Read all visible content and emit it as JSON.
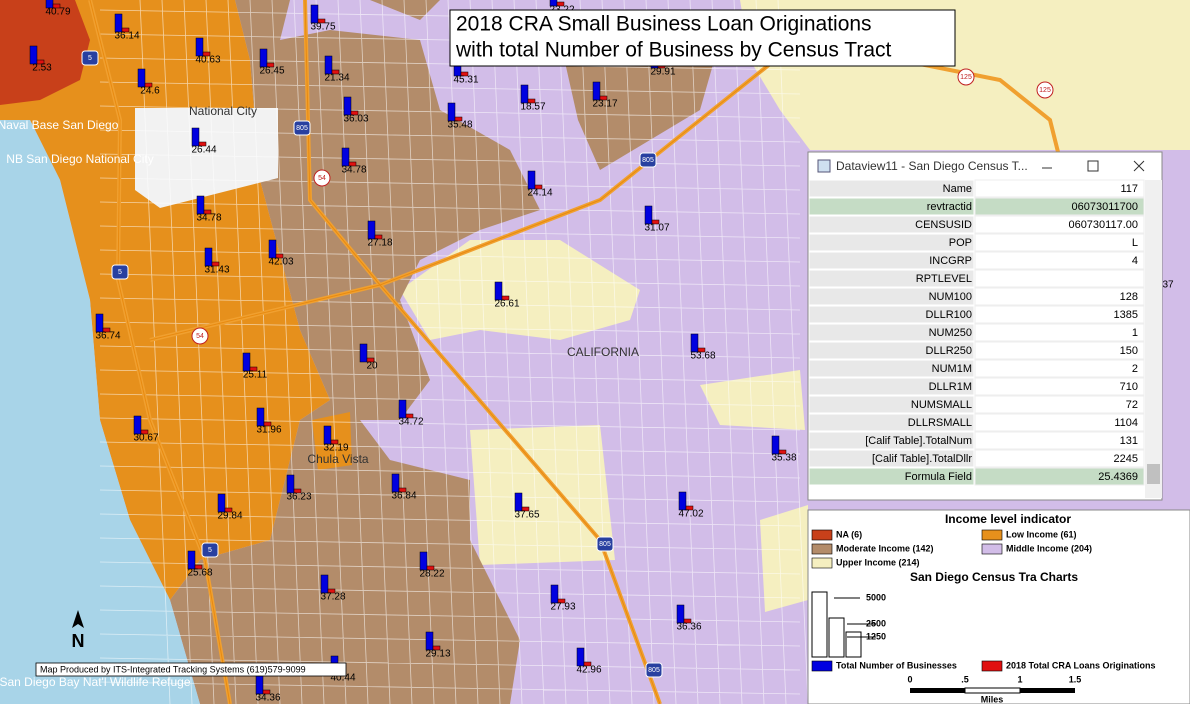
{
  "title": [
    "2018 CRA Small Business Loan Originations",
    "with total Number of Business by Census Tract"
  ],
  "map_labels": [
    "40.79",
    "36.14",
    "2.53",
    "40.63",
    "26.45",
    "21.34",
    "39.75",
    "45.31",
    "29.91",
    "23.22",
    "36.03",
    "35.48",
    "18.57",
    "23.17",
    "24.6",
    "26.44",
    "34.78",
    "24.14",
    "31.07",
    "34.78",
    "27.18",
    "42.03",
    "31.43",
    "26.61",
    "36.74",
    "53.68",
    "20",
    "25.11",
    "31.96",
    "34.72",
    "32.19",
    "30.67",
    "35.38",
    "36.23",
    "36.84",
    "37.65",
    "47.02",
    "29.84",
    "25.68",
    "28.22",
    "37.28",
    "27.93",
    "36.36",
    "29.13",
    "42.96",
    "40.44",
    "34.36",
    "37"
  ],
  "place_labels": [
    "National City",
    "Chula Vista",
    "CALIFORNIA",
    "Naval Base San Diego",
    "NB San Diego National City",
    "San Diego Bay Nat'l Wildlife Refuge"
  ],
  "shields": [
    "5",
    "805",
    "54",
    "805",
    "5",
    "54",
    "125",
    "125",
    "5",
    "805",
    "805"
  ],
  "dataview": {
    "title": "Dataview11 - San Diego Census T...",
    "rows": [
      [
        "Name",
        "117"
      ],
      [
        "revtractid",
        "06073011700"
      ],
      [
        "CENSUSID",
        "060730117.00"
      ],
      [
        "POP",
        "L"
      ],
      [
        "INCGRP",
        "4"
      ],
      [
        "RPTLEVEL",
        ""
      ],
      [
        "NUM100",
        "128"
      ],
      [
        "DLLR100",
        "1385"
      ],
      [
        "NUM250",
        "1"
      ],
      [
        "DLLR250",
        "150"
      ],
      [
        "NUM1M",
        "2"
      ],
      [
        "DLLR1M",
        "710"
      ],
      [
        "NUMSMALL",
        "72"
      ],
      [
        "DLLRSMALL",
        "1104"
      ],
      [
        "[Calif Table].TotalNum",
        "131"
      ],
      [
        "[Calif Table].TotalDllr",
        "2245"
      ],
      [
        "Formula Field",
        "25.4369"
      ]
    ]
  },
  "legend": {
    "title": "Income level indicator",
    "items": [
      {
        "label": "NA (6)",
        "color": "#c8401a"
      },
      {
        "label": "Low Income (61)",
        "color": "#e6901c"
      },
      {
        "label": "Moderate Income (142)",
        "color": "#b38c6a"
      },
      {
        "label": "Middle Income (204)",
        "color": "#d2bde8"
      },
      {
        "label": "Upper Income (214)",
        "color": "#f5efc0"
      }
    ]
  },
  "charts_legend": {
    "title": "San Diego Census Tra Charts",
    "sizes": [
      "5000",
      "2500",
      "1250"
    ],
    "series": [
      {
        "name": "Total Number of Businesses",
        "color": "#0000e0"
      },
      {
        "name": "2018 Total CRA Loans Originations",
        "color": "#e01010"
      }
    ]
  },
  "scale": {
    "ticks": [
      "0",
      ".5",
      "1",
      "1.5"
    ],
    "unit": "Miles"
  },
  "north": "N",
  "credit": "Map Produced by ITS-Integrated Tracking Systems (619)579-9099"
}
